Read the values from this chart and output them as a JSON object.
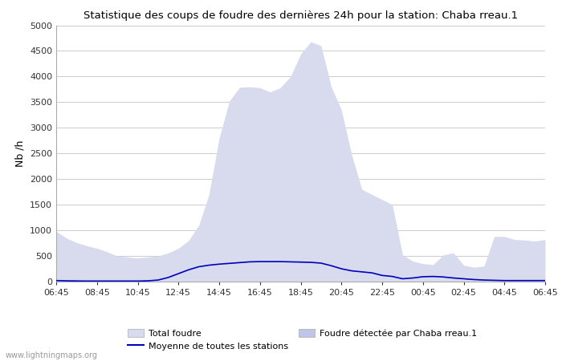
{
  "title": "Statistique des coups de foudre des dernières 24h pour la station: Chaba rreau.1",
  "ylabel": "Nb /h",
  "ylim": [
    0,
    5000
  ],
  "yticks": [
    0,
    500,
    1000,
    1500,
    2000,
    2500,
    3000,
    3500,
    4000,
    4500,
    5000
  ],
  "xtick_labels": [
    "06:45",
    "08:45",
    "10:45",
    "12:45",
    "14:45",
    "16:45",
    "18:45",
    "20:45",
    "22:45",
    "00:45",
    "02:45",
    "04:45",
    "06:45"
  ],
  "background_color": "#ffffff",
  "plot_bg_color": "#ffffff",
  "grid_color": "#cccccc",
  "fill_total_color": "#d8daee",
  "fill_station_color": "#c0c4e8",
  "line_color": "#0000bb",
  "watermark": "www.lightningmaps.org",
  "total_foudre": [
    980,
    850,
    760,
    700,
    650,
    580,
    500,
    480,
    460,
    480,
    500,
    560,
    650,
    800,
    1100,
    1700,
    2800,
    3520,
    3790,
    3800,
    3780,
    3700,
    3780,
    4000,
    4440,
    4680,
    4600,
    3800,
    3350,
    2480,
    1800,
    1700,
    1600,
    1500,
    520,
    400,
    350,
    330,
    520,
    560,
    320,
    280,
    300,
    880,
    880,
    820,
    810,
    790,
    820
  ],
  "station_foudre": [
    0,
    0,
    0,
    0,
    0,
    0,
    0,
    0,
    0,
    0,
    0,
    0,
    0,
    0,
    0,
    0,
    0,
    0,
    0,
    0,
    0,
    0,
    0,
    0,
    0,
    0,
    0,
    0,
    0,
    0,
    0,
    0,
    0,
    0,
    0,
    0,
    0,
    0,
    0,
    0,
    0,
    0,
    0,
    0,
    0,
    0,
    0,
    0,
    0
  ],
  "moyenne_line": [
    20,
    15,
    12,
    10,
    10,
    10,
    10,
    10,
    10,
    15,
    30,
    80,
    155,
    230,
    290,
    320,
    340,
    355,
    370,
    385,
    390,
    390,
    390,
    385,
    380,
    375,
    360,
    310,
    250,
    210,
    190,
    170,
    120,
    100,
    55,
    70,
    95,
    100,
    90,
    70,
    55,
    40,
    30,
    25,
    20,
    20,
    20,
    20,
    20
  ]
}
